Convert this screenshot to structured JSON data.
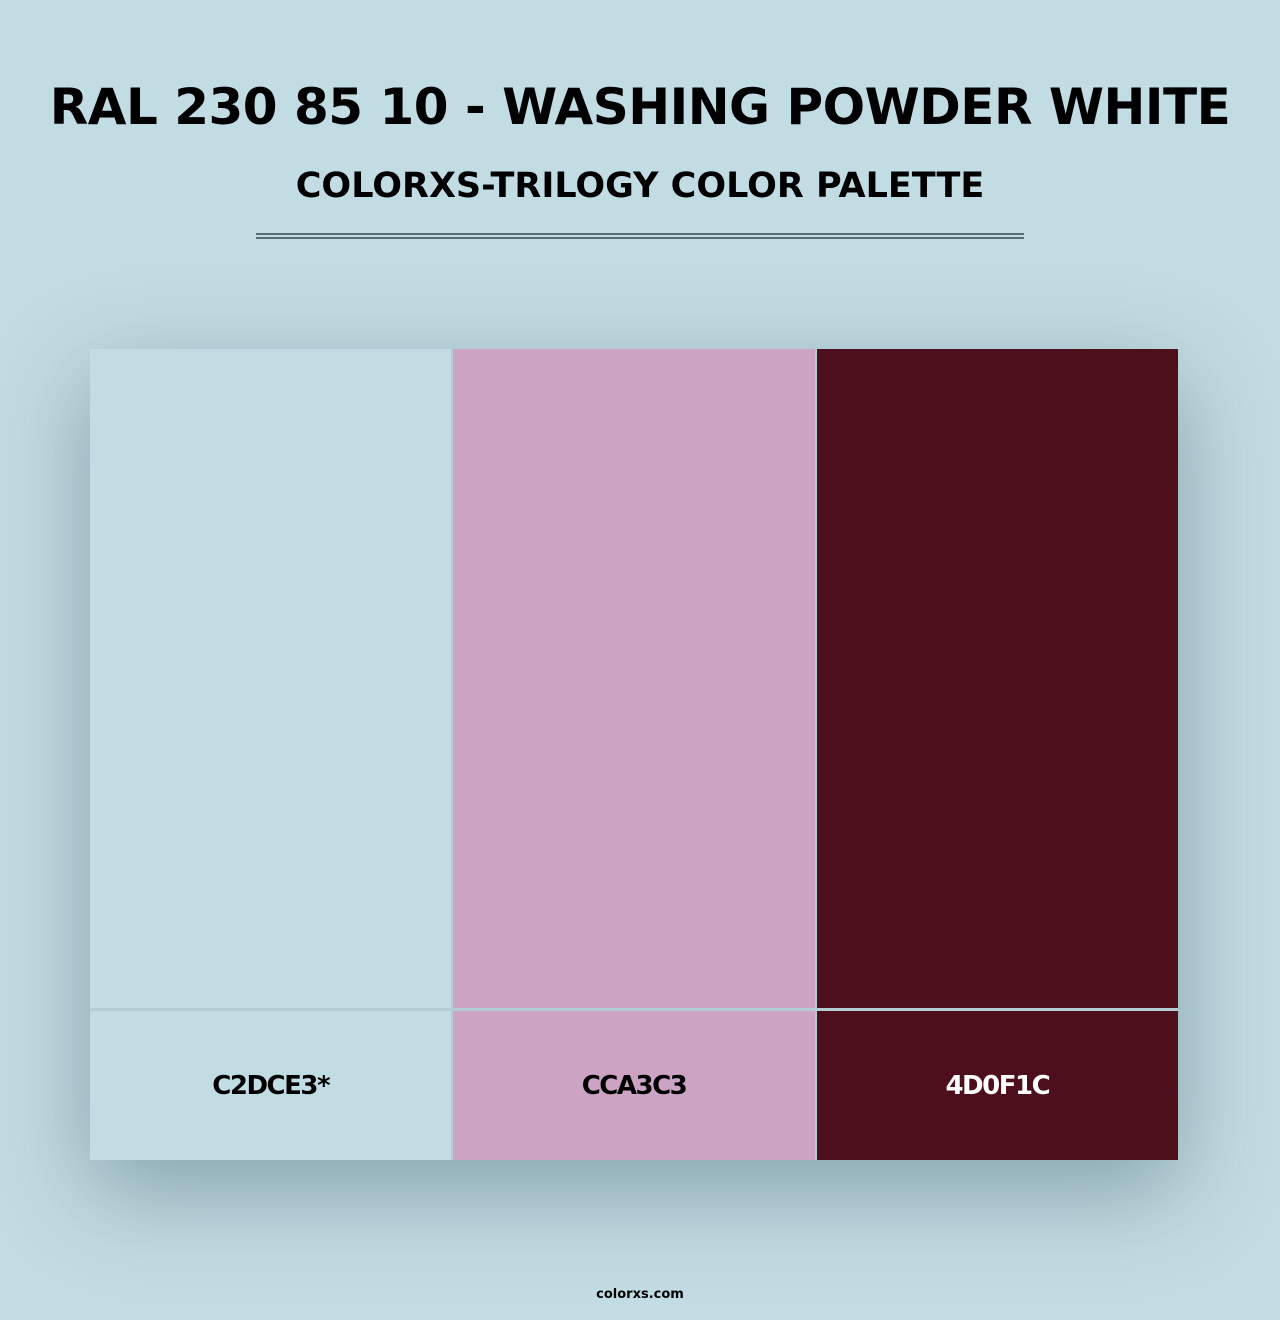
{
  "header": {
    "title": "RAL 230 85 10 - WASHING POWDER WHITE",
    "subtitle": "COLORXS-TRILOGY COLOR PALETTE"
  },
  "palette": [
    {
      "hex": "#C2DCE3",
      "label": "C2DCE3*",
      "text_color": "#000000"
    },
    {
      "hex": "#CCA3C3",
      "label": "CCA3C3",
      "text_color": "#000000"
    },
    {
      "hex": "#4D0F1C",
      "label": "4D0F1C",
      "text_color": "#FFFFFF"
    }
  ],
  "footer": {
    "site": "colorxs.com"
  }
}
